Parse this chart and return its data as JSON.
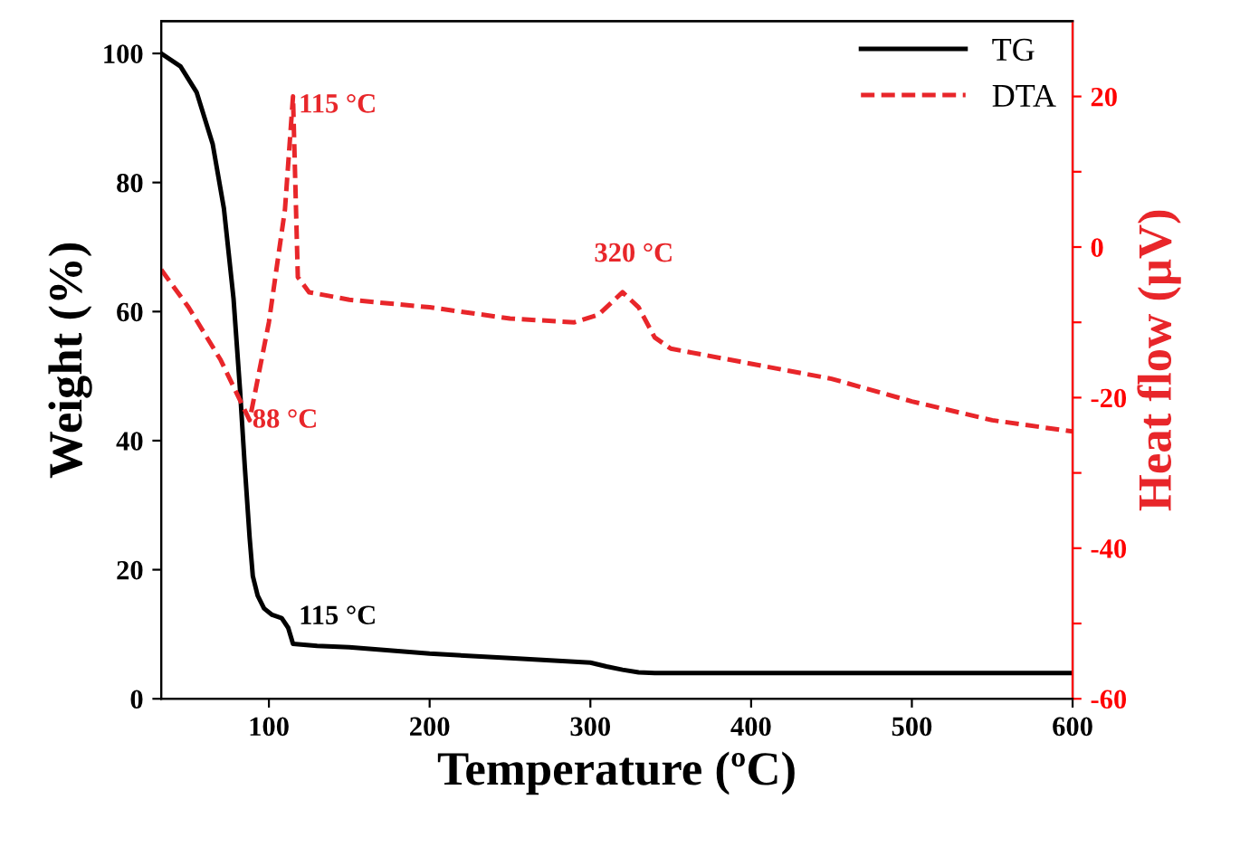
{
  "chart_data": {
    "type": "line",
    "xlabel": "Temperature (ºC)",
    "ylabel": "Weight (%)",
    "y2label": "Heat flow (μV)",
    "xlim": [
      33,
      600
    ],
    "xticks": [
      100,
      200,
      300,
      400,
      500,
      600
    ],
    "ylim": [
      0,
      105
    ],
    "yticks": [
      0,
      20,
      40,
      60,
      80,
      100
    ],
    "y2lim": [
      -60,
      30
    ],
    "y2ticks": [
      -60,
      {
        "value": -50,
        "label": null
      },
      -40,
      {
        "value": -30,
        "label": null
      },
      -20,
      {
        "value": -10,
        "label": null
      },
      0,
      {
        "value": 10,
        "label": null
      },
      20
    ],
    "legend": "top right",
    "grid": false,
    "series": [
      {
        "name": "TG",
        "color": "#000000",
        "line_style": "solid",
        "x": [
          33,
          45,
          55,
          65,
          72,
          78,
          82,
          85,
          88,
          90,
          93,
          97,
          102,
          108,
          112,
          115,
          130,
          150,
          200,
          250,
          300,
          310,
          320,
          330,
          340,
          400,
          500,
          600
        ],
        "values": [
          100,
          98,
          94,
          86,
          76,
          62,
          48,
          36,
          25,
          19,
          16,
          14,
          13,
          12.5,
          11,
          8.5,
          8.2,
          8,
          7,
          6.3,
          5.6,
          5,
          4.5,
          4.1,
          4,
          4,
          4,
          4
        ]
      },
      {
        "name": "DTA",
        "color": "#e8262a",
        "line_style": "dashed",
        "axis": "y2",
        "x": [
          33,
          50,
          70,
          88,
          100,
          110,
          115,
          118,
          125,
          150,
          200,
          250,
          290,
          305,
          320,
          330,
          340,
          350,
          400,
          450,
          500,
          550,
          600
        ],
        "values": [
          -3,
          -8,
          -15,
          -23,
          -10,
          5,
          20,
          -4,
          -6,
          -7,
          -8,
          -9.5,
          -10,
          -9,
          -6,
          -8,
          -12,
          -13.5,
          -15.5,
          -17.5,
          -20.5,
          -23,
          -24.5
        ]
      }
    ],
    "annotations": [
      "115 °C",
      "88 °C",
      "320 °C",
      "115 °C"
    ]
  }
}
